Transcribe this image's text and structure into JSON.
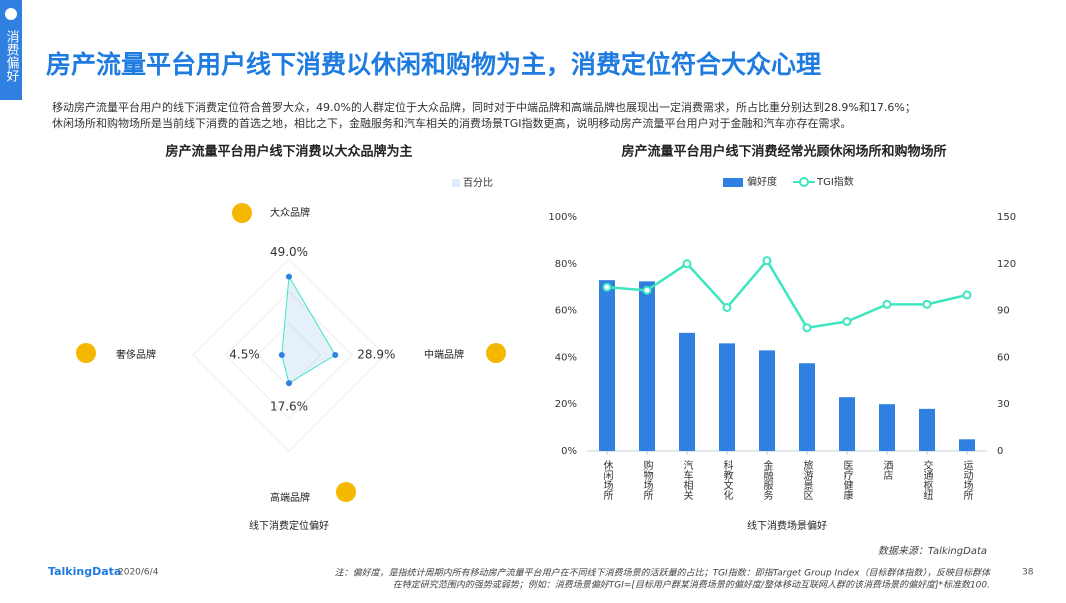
{
  "sidebar": "消费偏好",
  "header": {
    "title": "房产流量平台用户线下消费以休闲和购物为主，消费定位符合大众心理",
    "description": [
      "移动房产流量平台用户的线下消费定位符合普罗大众，49.0%的人群定位于大众品牌，同时对于中端品牌和高端品牌也展现出一定消费需求，所占比重分别达到28.9%和17.6%；",
      "休闲场所和购物场所是当前线下消费的首选之地，相比之下，金融服务和汽车相关的消费场景TGI指数更高，说明移动房产流量平台用户对于金融和汽车亦存在需求。"
    ]
  },
  "chart_data": [
    {
      "type": "radar",
      "title": "房产流量平台用户线下消费以大众品牌为主",
      "axis_title": "线下消费定位偏好",
      "categories": [
        "大众品牌",
        "中端品牌",
        "高端品牌",
        "奢侈品牌"
      ],
      "series": [
        {
          "name": "百分比",
          "color": "#2f80e0",
          "values": [
            49.0,
            28.9,
            17.6,
            4.5
          ],
          "value_labels": [
            "49.0%",
            "28.9%",
            "17.6%",
            "4.5%"
          ]
        }
      ],
      "rlim": [
        0,
        60
      ]
    },
    {
      "type": "bar-line",
      "title": "房产流量平台用户线下消费经常光顾休闲场所和购物场所",
      "x_label": "线下消费场景偏好",
      "categories": [
        "休闲场所",
        "购物场所",
        "汽车相关",
        "科教文化",
        "金融服务",
        "旅游景区",
        "医疗健康",
        "酒店",
        "交通枢纽",
        "运动场所"
      ],
      "series": [
        {
          "name": "偏好度",
          "type": "bar",
          "color": "#2f80e0",
          "values": [
            73,
            72.5,
            50.5,
            46,
            43,
            37.5,
            23,
            20,
            18,
            5
          ]
        },
        {
          "name": "TGI指数",
          "type": "line",
          "axis": "y2",
          "color": "#3ee6c0",
          "values": [
            105,
            103,
            120,
            92,
            122,
            79,
            83,
            94,
            94,
            100
          ]
        }
      ],
      "ylim": [
        0,
        100
      ],
      "yticks": [
        {
          "value": 0,
          "label": "0%"
        },
        {
          "value": 20,
          "label": "20%"
        },
        {
          "value": 40,
          "label": "40%"
        },
        {
          "value": 60,
          "label": "60%"
        },
        {
          "value": 80,
          "label": "80%"
        },
        {
          "value": 100,
          "label": "100%"
        }
      ],
      "y2lim": [
        0,
        150
      ],
      "y2ticks": [
        0,
        30,
        60,
        90,
        120,
        150
      ]
    }
  ],
  "footer": {
    "source": "数据来源：TalkingData",
    "logo": "TalkingData",
    "date": "2020/6/4",
    "note": [
      "注：偏好度，是指统计周期内所有移动房产流量平台用户在不同线下消费场景的活跃量的占比；TGI指数：即指Target Group Index（目标群体指数），反映目标群体",
      "在特定研究范围内的强势或弱势；例如：消费场景偏好TGI=[目标用户群某消费场景的偏好度/整体移动互联网人群的该消费场景的偏好度]*标准数100."
    ],
    "page": "38"
  }
}
